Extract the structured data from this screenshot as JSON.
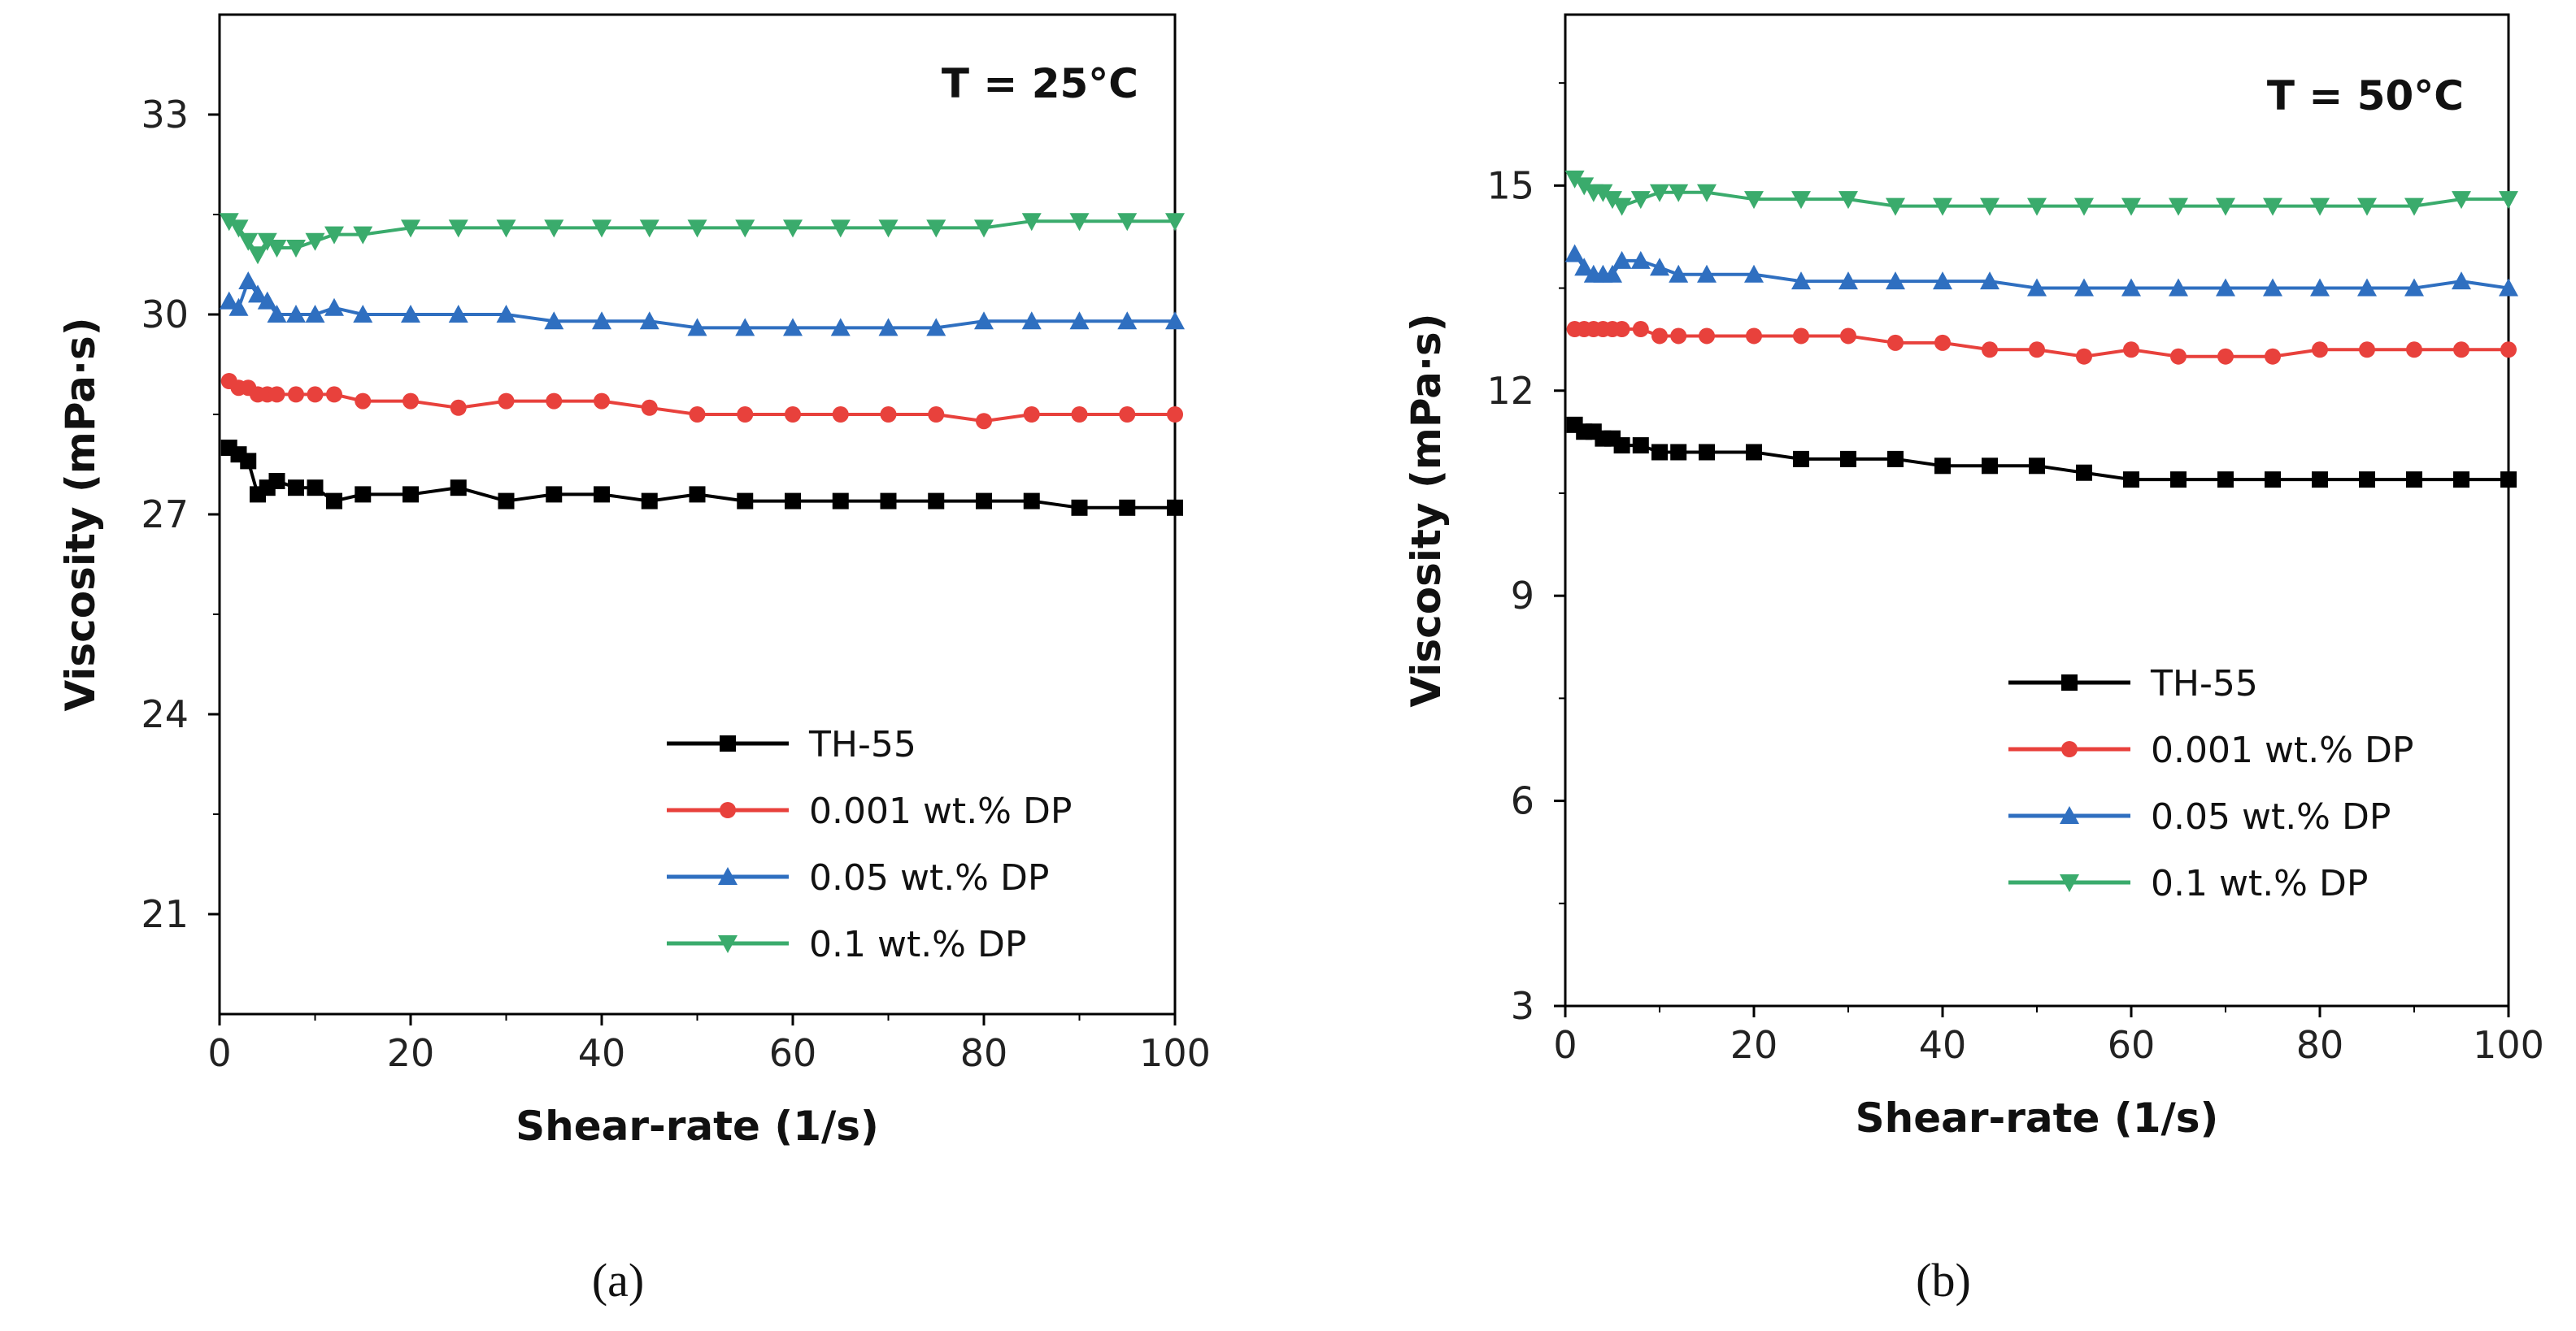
{
  "chart_data": [
    {
      "type": "line",
      "panel": "a",
      "annotation": "T = 25°C",
      "caption": "(a)",
      "xlabel": "Shear-rate (1/s)",
      "ylabel": "Viscosity (mPa·s)",
      "xlim": [
        0,
        100
      ],
      "ylim": [
        19.5,
        34.5
      ],
      "xticks": [
        0,
        20,
        40,
        60,
        80,
        100
      ],
      "yticks": [
        21,
        24,
        27,
        30,
        33
      ],
      "legend_position": "lower-right",
      "x": [
        1,
        2,
        3,
        4,
        5,
        6,
        8,
        10,
        12,
        15,
        20,
        25,
        30,
        35,
        40,
        45,
        50,
        55,
        60,
        65,
        70,
        75,
        80,
        85,
        90,
        95,
        100
      ],
      "series": [
        {
          "name": "TH-55",
          "color": "#000000",
          "marker": "square",
          "values": [
            28.0,
            27.9,
            27.8,
            27.3,
            27.4,
            27.5,
            27.4,
            27.4,
            27.2,
            27.3,
            27.3,
            27.4,
            27.2,
            27.3,
            27.3,
            27.2,
            27.3,
            27.2,
            27.2,
            27.2,
            27.2,
            27.2,
            27.2,
            27.2,
            27.1,
            27.1,
            27.1
          ]
        },
        {
          "name": "0.001 wt.% DP",
          "color": "#e8413c",
          "marker": "circle",
          "values": [
            29.0,
            28.9,
            28.9,
            28.8,
            28.8,
            28.8,
            28.8,
            28.8,
            28.8,
            28.7,
            28.7,
            28.6,
            28.7,
            28.7,
            28.7,
            28.6,
            28.5,
            28.5,
            28.5,
            28.5,
            28.5,
            28.5,
            28.4,
            28.5,
            28.5,
            28.5,
            28.5
          ]
        },
        {
          "name": "0.05 wt.% DP",
          "color": "#2f6fc0",
          "marker": "triangle-up",
          "values": [
            30.2,
            30.1,
            30.5,
            30.3,
            30.2,
            30.0,
            30.0,
            30.0,
            30.1,
            30.0,
            30.0,
            30.0,
            30.0,
            29.9,
            29.9,
            29.9,
            29.8,
            29.8,
            29.8,
            29.8,
            29.8,
            29.8,
            29.9,
            29.9,
            29.9,
            29.9,
            29.9
          ]
        },
        {
          "name": "0.1 wt.% DP",
          "color": "#3aab6c",
          "marker": "triangle-down",
          "values": [
            31.4,
            31.3,
            31.1,
            30.9,
            31.1,
            31.0,
            31.0,
            31.1,
            31.2,
            31.2,
            31.3,
            31.3,
            31.3,
            31.3,
            31.3,
            31.3,
            31.3,
            31.3,
            31.3,
            31.3,
            31.3,
            31.3,
            31.3,
            31.4,
            31.4,
            31.4,
            31.4
          ]
        }
      ]
    },
    {
      "type": "line",
      "panel": "b",
      "annotation": "T = 50°C",
      "caption": "(b)",
      "xlabel": "Shear-rate (1/s)",
      "ylabel": "Viscosity (mPa·s)",
      "xlim": [
        0,
        100
      ],
      "ylim": [
        3,
        17.5
      ],
      "xticks": [
        0,
        20,
        40,
        60,
        80,
        100
      ],
      "yticks": [
        3,
        6,
        9,
        12,
        15
      ],
      "legend_position": "lower-right",
      "x": [
        1,
        2,
        3,
        4,
        5,
        6,
        8,
        10,
        12,
        15,
        20,
        25,
        30,
        35,
        40,
        45,
        50,
        55,
        60,
        65,
        70,
        75,
        80,
        85,
        90,
        95,
        100
      ],
      "series": [
        {
          "name": "TH-55",
          "color": "#000000",
          "marker": "square",
          "values": [
            11.5,
            11.4,
            11.4,
            11.3,
            11.3,
            11.2,
            11.2,
            11.1,
            11.1,
            11.1,
            11.1,
            11.0,
            11.0,
            11.0,
            10.9,
            10.9,
            10.9,
            10.8,
            10.7,
            10.7,
            10.7,
            10.7,
            10.7,
            10.7,
            10.7,
            10.7,
            10.7
          ]
        },
        {
          "name": "0.001 wt.% DP",
          "color": "#e8413c",
          "marker": "circle",
          "values": [
            12.9,
            12.9,
            12.9,
            12.9,
            12.9,
            12.9,
            12.9,
            12.8,
            12.8,
            12.8,
            12.8,
            12.8,
            12.8,
            12.7,
            12.7,
            12.6,
            12.6,
            12.5,
            12.6,
            12.5,
            12.5,
            12.5,
            12.6,
            12.6,
            12.6,
            12.6,
            12.6
          ]
        },
        {
          "name": "0.05 wt.% DP",
          "color": "#2f6fc0",
          "marker": "triangle-up",
          "values": [
            14.0,
            13.8,
            13.7,
            13.7,
            13.7,
            13.9,
            13.9,
            13.8,
            13.7,
            13.7,
            13.7,
            13.6,
            13.6,
            13.6,
            13.6,
            13.6,
            13.5,
            13.5,
            13.5,
            13.5,
            13.5,
            13.5,
            13.5,
            13.5,
            13.5,
            13.6,
            13.5
          ]
        },
        {
          "name": "0.1 wt.% DP",
          "color": "#3aab6c",
          "marker": "triangle-down",
          "values": [
            15.1,
            15.0,
            14.9,
            14.9,
            14.8,
            14.7,
            14.8,
            14.9,
            14.9,
            14.9,
            14.8,
            14.8,
            14.8,
            14.7,
            14.7,
            14.7,
            14.7,
            14.7,
            14.7,
            14.7,
            14.7,
            14.7,
            14.7,
            14.7,
            14.7,
            14.8,
            14.8
          ]
        }
      ]
    }
  ]
}
